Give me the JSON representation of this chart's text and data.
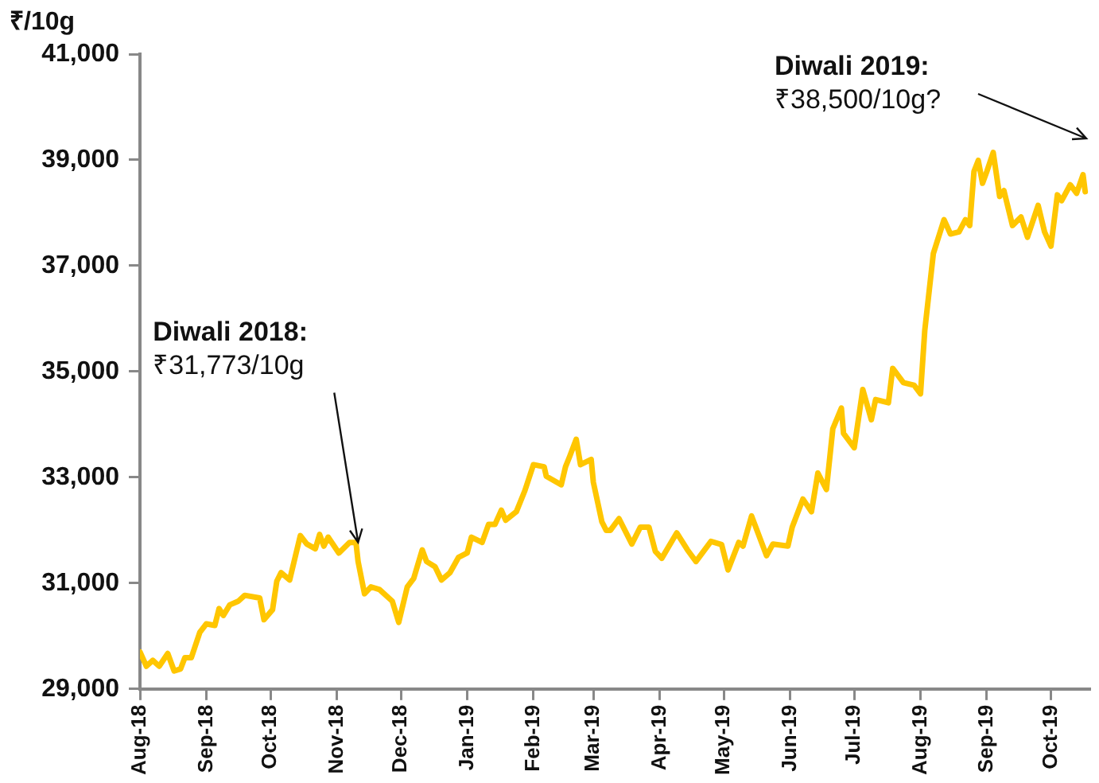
{
  "chart_data": {
    "type": "line",
    "ylabel": "₹/10g",
    "x": [
      "2018-08-01",
      "2018-08-04",
      "2018-08-07",
      "2018-08-10",
      "2018-08-14",
      "2018-08-17",
      "2018-08-20",
      "2018-08-22",
      "2018-08-25",
      "2018-08-29",
      "2018-09-01",
      "2018-09-05",
      "2018-09-07",
      "2018-09-09",
      "2018-09-12",
      "2018-09-16",
      "2018-09-19",
      "2018-09-26",
      "2018-09-28",
      "2018-10-02",
      "2018-10-04",
      "2018-10-06",
      "2018-10-10",
      "2018-10-15",
      "2018-10-18",
      "2018-10-22",
      "2018-10-24",
      "2018-10-26",
      "2018-10-28",
      "2018-11-02",
      "2018-11-07",
      "2018-11-10",
      "2018-11-11",
      "2018-11-14",
      "2018-11-17",
      "2018-11-21",
      "2018-11-27",
      "2018-11-30",
      "2018-12-04",
      "2018-12-07",
      "2018-12-11",
      "2018-12-13",
      "2018-12-17",
      "2018-12-20",
      "2018-12-24",
      "2018-12-28",
      "2019-01-01",
      "2019-01-03",
      "2019-01-08",
      "2019-01-11",
      "2019-01-14",
      "2019-01-17",
      "2019-01-19",
      "2019-01-24",
      "2019-01-28",
      "2019-02-01",
      "2019-02-06",
      "2019-02-07",
      "2019-02-14",
      "2019-02-16",
      "2019-02-18",
      "2019-02-21",
      "2019-02-23",
      "2019-02-28",
      "2019-03-01",
      "2019-03-05",
      "2019-03-07",
      "2019-03-09",
      "2019-03-13",
      "2019-03-19",
      "2019-03-23",
      "2019-03-27",
      "2019-03-30",
      "2019-04-02",
      "2019-04-09",
      "2019-04-14",
      "2019-04-18",
      "2019-04-25",
      "2019-04-30",
      "2019-05-03",
      "2019-05-08",
      "2019-05-10",
      "2019-05-14",
      "2019-05-21",
      "2019-05-24",
      "2019-05-31",
      "2019-06-02",
      "2019-06-07",
      "2019-06-11",
      "2019-06-14",
      "2019-06-18",
      "2019-06-21",
      "2019-06-25",
      "2019-06-26",
      "2019-07-01",
      "2019-07-05",
      "2019-07-09",
      "2019-07-11",
      "2019-07-17",
      "2019-07-19",
      "2019-07-24",
      "2019-07-29",
      "2019-08-01",
      "2019-08-03",
      "2019-08-07",
      "2019-08-12",
      "2019-08-15",
      "2019-08-19",
      "2019-08-22",
      "2019-08-24",
      "2019-08-26",
      "2019-08-28",
      "2019-08-30",
      "2019-09-01",
      "2019-09-04",
      "2019-09-07",
      "2019-09-09",
      "2019-09-13",
      "2019-09-17",
      "2019-09-20",
      "2019-09-25",
      "2019-09-28",
      "2019-10-01",
      "2019-10-04",
      "2019-10-06",
      "2019-10-10",
      "2019-10-13",
      "2019-10-16",
      "2019-10-17"
    ],
    "series": [
      {
        "color": "#ffc600",
        "values": [
          29700,
          29430,
          29540,
          29430,
          29670,
          29340,
          29380,
          29590,
          29590,
          30070,
          30230,
          30200,
          30520,
          30390,
          30590,
          30660,
          30770,
          30720,
          30310,
          30500,
          31040,
          31200,
          31060,
          31900,
          31740,
          31650,
          31920,
          31700,
          31870,
          31570,
          31770,
          31770,
          31410,
          30800,
          30930,
          30880,
          30660,
          30260,
          30930,
          31090,
          31630,
          31410,
          31310,
          31060,
          31200,
          31490,
          31570,
          31870,
          31770,
          32110,
          32110,
          32380,
          32190,
          32350,
          32750,
          33240,
          33200,
          33020,
          32860,
          33200,
          33400,
          33720,
          33240,
          33340,
          32910,
          32160,
          32000,
          32000,
          32220,
          31740,
          32060,
          32060,
          31600,
          31470,
          31950,
          31630,
          31410,
          31790,
          31730,
          31250,
          31770,
          31700,
          32270,
          31520,
          31740,
          31700,
          32060,
          32590,
          32350,
          33080,
          32770,
          33920,
          34310,
          33830,
          33560,
          34660,
          34090,
          34470,
          34410,
          35060,
          34790,
          34740,
          34580,
          35780,
          37230,
          37870,
          37600,
          37640,
          37870,
          37760,
          38780,
          38990,
          38560,
          38780,
          39140,
          38310,
          38420,
          37760,
          37920,
          37540,
          38140,
          37640,
          37370,
          38340,
          38230,
          38530,
          38370,
          38720,
          38400
        ]
      }
    ],
    "xlim": [
      "2018-08-01",
      "2019-10-19"
    ],
    "xticks": [
      {
        "value": "2018-08-01",
        "label": "Aug-18"
      },
      {
        "value": "2018-09-01",
        "label": "Sep-18"
      },
      {
        "value": "2018-10-01",
        "label": "Oct-18"
      },
      {
        "value": "2018-11-01",
        "label": "Nov-18"
      },
      {
        "value": "2018-12-01",
        "label": "Dec-18"
      },
      {
        "value": "2019-01-01",
        "label": "Jan-19"
      },
      {
        "value": "2019-02-01",
        "label": "Feb-19"
      },
      {
        "value": "2019-03-01",
        "label": "Mar-19"
      },
      {
        "value": "2019-04-01",
        "label": "Apr-19"
      },
      {
        "value": "2019-05-01",
        "label": "May-19"
      },
      {
        "value": "2019-06-01",
        "label": "Jun-19"
      },
      {
        "value": "2019-07-01",
        "label": "Jul-19"
      },
      {
        "value": "2019-08-01",
        "label": "Aug-19"
      },
      {
        "value": "2019-09-01",
        "label": "Sep-19"
      },
      {
        "value": "2019-10-01",
        "label": "Oct-19"
      }
    ],
    "ylim": [
      29000,
      41000
    ],
    "yticks": [
      {
        "value": 29000,
        "label": "29,000"
      },
      {
        "value": 31000,
        "label": "31,000"
      },
      {
        "value": 33000,
        "label": "33,000"
      },
      {
        "value": 35000,
        "label": "35,000"
      },
      {
        "value": 37000,
        "label": "37,000"
      },
      {
        "value": 39000,
        "label": "39,000"
      },
      {
        "value": 41000,
        "label": "41,000"
      }
    ],
    "grid": false,
    "legend": false,
    "marker": "none",
    "line_style": "solid",
    "annotations": [
      {
        "text": "Diwali 2018:\n₹31,773/10g",
        "x": "2018-11-11",
        "y": 31773
      },
      "Diwali 2019:\n₹38,500/10g?"
    ]
  }
}
